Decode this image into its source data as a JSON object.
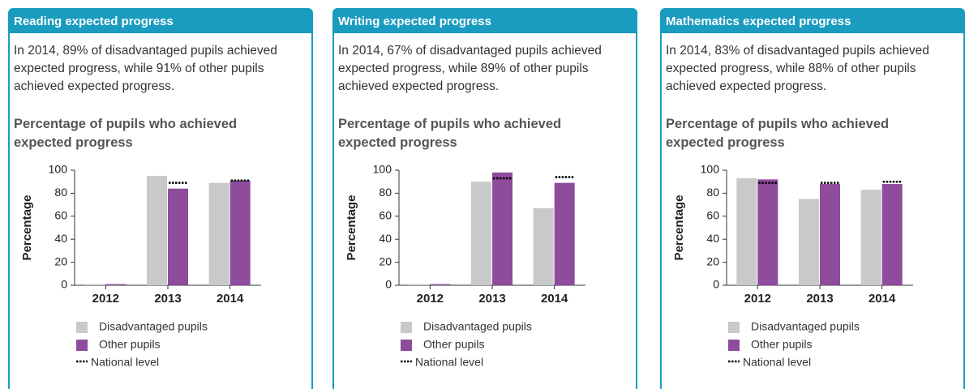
{
  "chart_data": [
    {
      "type": "bar",
      "header": "Reading expected progress",
      "summary": "In 2014, 89% of disadvantaged pupils achieved expected progress, while 91% of other pupils achieved expected progress.",
      "title": "Percentage of pupils who achieved expected progress",
      "ylabel": "Percentage",
      "categories": [
        "2012",
        "2013",
        "2014"
      ],
      "series": [
        {
          "name": "Disadvantaged pupils",
          "color": "#c9c9c9",
          "values": [
            1,
            95,
            89
          ]
        },
        {
          "name": "Other pupils",
          "color": "#8f4b9c",
          "values": [
            1,
            84,
            91
          ]
        },
        {
          "name": "National level",
          "color": "#000000",
          "values": [
            null,
            89,
            91
          ]
        }
      ],
      "ylim": [
        0,
        100
      ],
      "yticks": [
        0,
        20,
        40,
        60,
        80,
        100
      ]
    },
    {
      "type": "bar",
      "header": "Writing expected progress",
      "summary": "In 2014, 67% of disadvantaged pupils achieved expected progress, while 89% of other pupils achieved expected progress.",
      "title": "Percentage of pupils who achieved expected progress",
      "ylabel": "Percentage",
      "categories": [
        "2012",
        "2013",
        "2014"
      ],
      "series": [
        {
          "name": "Disadvantaged pupils",
          "color": "#c9c9c9",
          "values": [
            1,
            90,
            67
          ]
        },
        {
          "name": "Other pupils",
          "color": "#8f4b9c",
          "values": [
            1,
            98,
            89
          ]
        },
        {
          "name": "National level",
          "color": "#000000",
          "values": [
            null,
            93,
            94
          ]
        }
      ],
      "ylim": [
        0,
        100
      ],
      "yticks": [
        0,
        20,
        40,
        60,
        80,
        100
      ]
    },
    {
      "type": "bar",
      "header": "Mathematics expected progress",
      "summary": "In 2014, 83% of disadvantaged pupils achieved expected progress, while 88% of other pupils achieved expected progress.",
      "title": "Percentage of pupils who achieved expected progress",
      "ylabel": "Percentage",
      "categories": [
        "2012",
        "2013",
        "2014"
      ],
      "series": [
        {
          "name": "Disadvantaged pupils",
          "color": "#c9c9c9",
          "values": [
            93,
            75,
            83
          ]
        },
        {
          "name": "Other pupils",
          "color": "#8f4b9c",
          "values": [
            92,
            88,
            88
          ]
        },
        {
          "name": "National level",
          "color": "#000000",
          "values": [
            89,
            89,
            90
          ]
        }
      ],
      "ylim": [
        0,
        100
      ],
      "yticks": [
        0,
        20,
        40,
        60,
        80,
        100
      ]
    }
  ]
}
